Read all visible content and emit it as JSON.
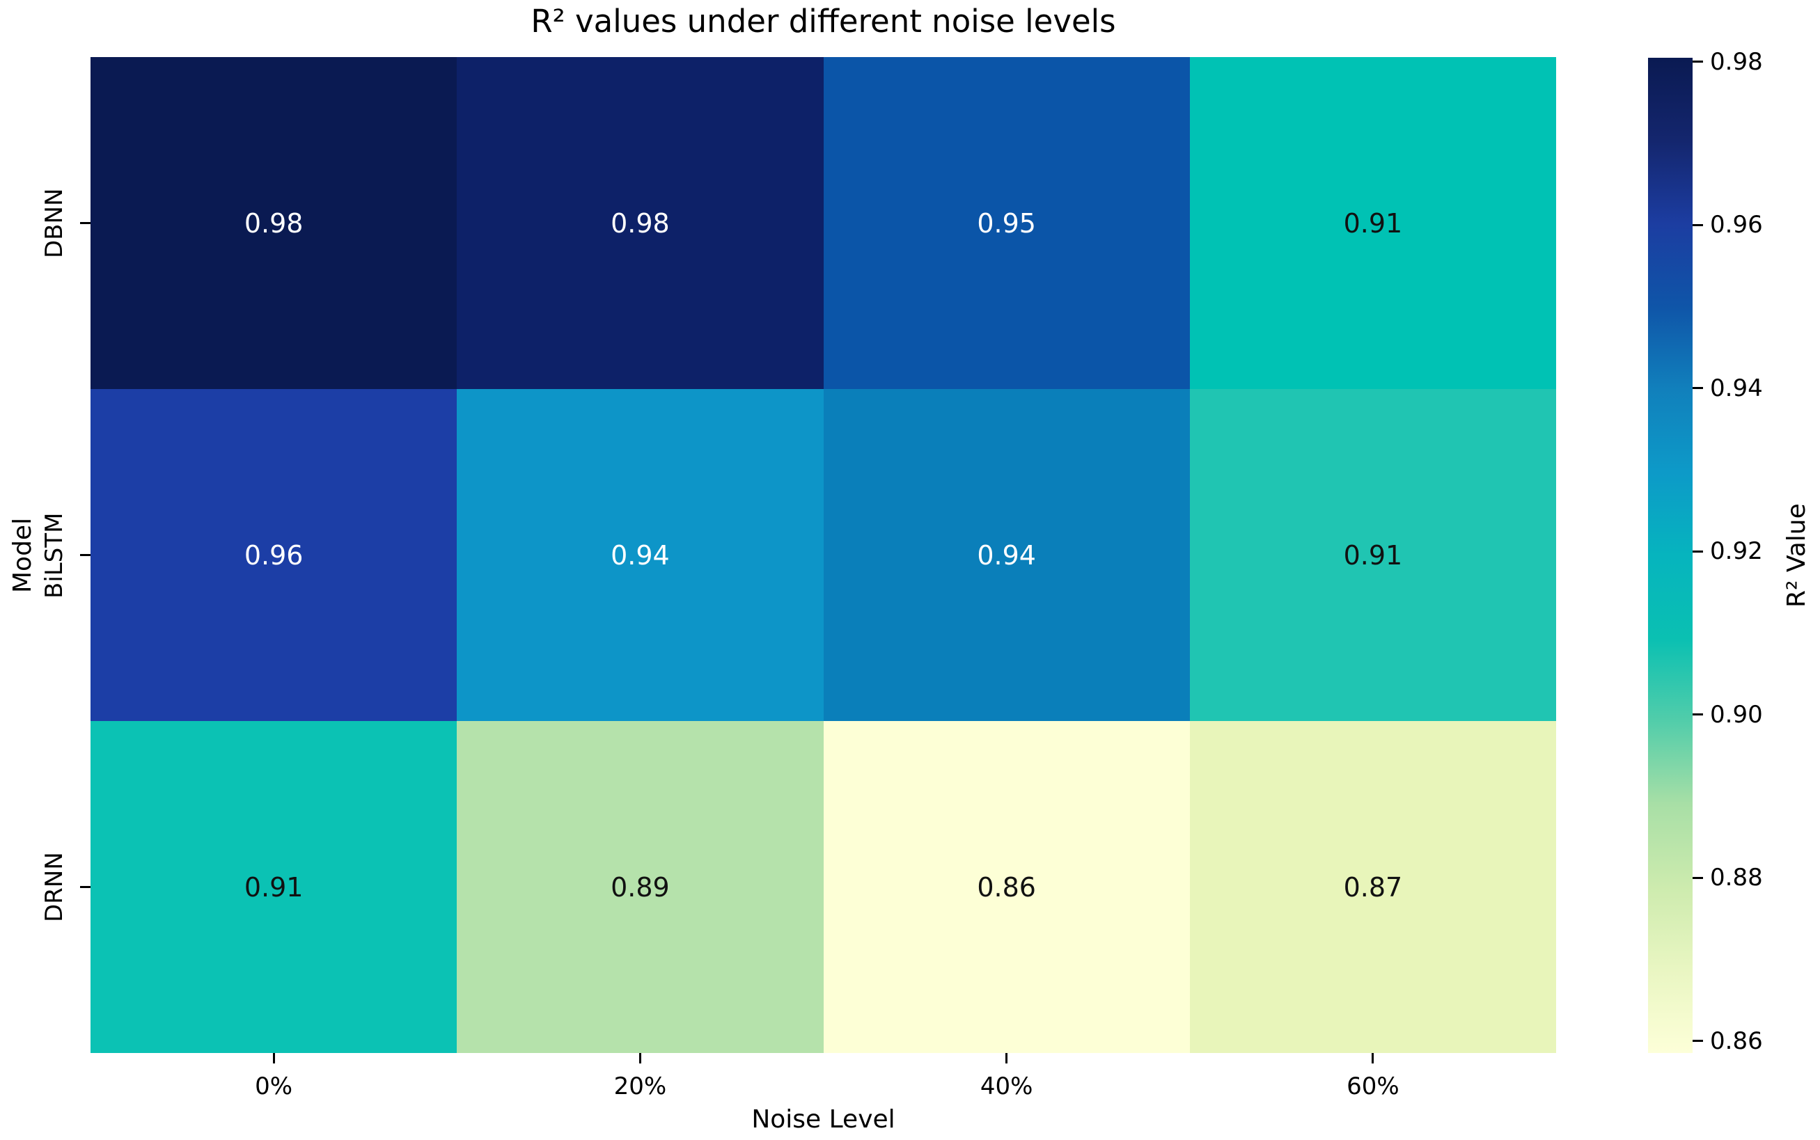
{
  "chart_data": {
    "type": "heatmap",
    "title": "R² values under different noise levels",
    "xlabel": "Noise Level",
    "ylabel": "Model",
    "x_categories": [
      "0%",
      "20%",
      "40%",
      "60%"
    ],
    "y_categories": [
      "DBNN",
      "BiLSTM",
      "DRNN"
    ],
    "values": [
      [
        0.98,
        0.98,
        0.95,
        0.91
      ],
      [
        0.96,
        0.94,
        0.94,
        0.91
      ],
      [
        0.91,
        0.89,
        0.86,
        0.87
      ]
    ],
    "value_labels": [
      [
        "0.98",
        "0.98",
        "0.95",
        "0.91"
      ],
      [
        "0.96",
        "0.94",
        "0.94",
        "0.91"
      ],
      [
        "0.91",
        "0.89",
        "0.86",
        "0.87"
      ]
    ],
    "cell_colors": [
      [
        "#0a1a52",
        "#0d2168",
        "#0b55a8",
        "#00c2b4"
      ],
      [
        "#1c3ea6",
        "#0d95c8",
        "#0a7fba",
        "#20c5b2"
      ],
      [
        "#0bc2b4",
        "#b5e2ab",
        "#fdffd6",
        "#e8f5ba"
      ]
    ],
    "text_colors": [
      [
        "#ffffff",
        "#ffffff",
        "#ffffff",
        "#111111"
      ],
      [
        "#ffffff",
        "#ffffff",
        "#ffffff",
        "#111111"
      ],
      [
        "#111111",
        "#111111",
        "#111111",
        "#111111"
      ]
    ],
    "grid": false,
    "colorbar": {
      "label": "R² Value",
      "ticks": [
        "0.98",
        "0.96",
        "0.94",
        "0.92",
        "0.90",
        "0.88",
        "0.86"
      ],
      "gradient_stops": [
        "#0a1a52",
        "#14266e",
        "#1c3da1",
        "#0f55a8",
        "#1180bc",
        "#0d9ac8",
        "#06b4be",
        "#0ac0b2",
        "#52cdaa",
        "#a8dfa6",
        "#cdebae",
        "#e9f6c2",
        "#fdffd8"
      ]
    }
  }
}
